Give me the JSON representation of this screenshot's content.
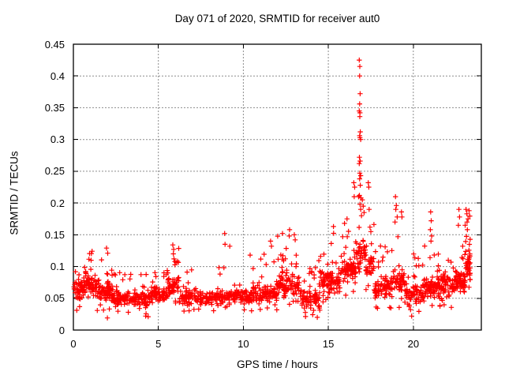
{
  "chart_data": {
    "type": "scatter",
    "title": "Day 071 of 2020, SRMTID for receiver aut0",
    "xlabel": "GPS time / hours",
    "ylabel": "SRMTID / TECUs",
    "xlim": [
      0,
      24
    ],
    "ylim": [
      0,
      0.45
    ],
    "xticks": {
      "values": [
        0,
        5,
        10,
        15,
        20
      ],
      "labels": [
        "0",
        "5",
        "10",
        "15",
        "20"
      ]
    },
    "yticks": {
      "values": [
        0,
        0.05,
        0.1,
        0.15,
        0.2,
        0.25,
        0.3,
        0.35,
        0.4,
        0.45
      ],
      "labels": [
        "0",
        "0.05",
        "0.1",
        "0.15",
        "0.2",
        "0.25",
        "0.3",
        "0.35",
        "0.4",
        "0.45"
      ]
    },
    "grid": true,
    "legend": "none",
    "marker": {
      "shape": "plus",
      "color": "#ff0000",
      "size": 7,
      "stroke_width": 1.2
    },
    "colors": {
      "marker": "#ff0000",
      "grid": "#8c8c8c",
      "axis": "#000000",
      "background": "#ffffff"
    },
    "seed": 20200711,
    "distribution": {
      "p_upper_tail": 0.2,
      "upper_pow": 1.9,
      "p_lower_tail": 0.12,
      "lower_pow": 1.4,
      "core_width_factor": 0.55
    },
    "segments_t0_t1_n_min_mode_max": [
      [
        0.0,
        0.7,
        60,
        0.03,
        0.065,
        0.105
      ],
      [
        0.7,
        1.4,
        60,
        0.032,
        0.068,
        0.122
      ],
      [
        1.4,
        2.2,
        70,
        0.03,
        0.062,
        0.128
      ],
      [
        2.2,
        3.2,
        75,
        0.028,
        0.05,
        0.095
      ],
      [
        3.2,
        4.5,
        85,
        0.022,
        0.048,
        0.09
      ],
      [
        4.5,
        5.5,
        70,
        0.03,
        0.055,
        0.1
      ],
      [
        5.5,
        6.2,
        55,
        0.035,
        0.068,
        0.13
      ],
      [
        6.2,
        7.5,
        80,
        0.028,
        0.052,
        0.095
      ],
      [
        7.5,
        8.8,
        80,
        0.028,
        0.05,
        0.105
      ],
      [
        8.8,
        10.5,
        100,
        0.03,
        0.052,
        0.11
      ],
      [
        10.5,
        12.0,
        100,
        0.03,
        0.057,
        0.125
      ],
      [
        12.0,
        13.3,
        100,
        0.035,
        0.07,
        0.15
      ],
      [
        13.3,
        14.5,
        80,
        0.02,
        0.05,
        0.11
      ],
      [
        14.5,
        15.7,
        90,
        0.04,
        0.077,
        0.16
      ],
      [
        15.7,
        16.6,
        70,
        0.045,
        0.092,
        0.185
      ],
      [
        16.6,
        17.2,
        45,
        0.07,
        0.12,
        0.22
      ],
      [
        17.2,
        17.7,
        35,
        0.06,
        0.1,
        0.185
      ],
      [
        17.7,
        18.7,
        70,
        0.03,
        0.065,
        0.135
      ],
      [
        18.7,
        19.5,
        60,
        0.035,
        0.075,
        0.16
      ],
      [
        19.5,
        20.6,
        75,
        0.025,
        0.058,
        0.13
      ],
      [
        20.6,
        21.4,
        65,
        0.035,
        0.068,
        0.15
      ],
      [
        21.4,
        22.4,
        80,
        0.03,
        0.068,
        0.135
      ],
      [
        22.4,
        23.05,
        70,
        0.04,
        0.08,
        0.155
      ],
      [
        23.05,
        23.35,
        40,
        0.06,
        0.105,
        0.185
      ]
    ],
    "outlier_points": [
      [
        1.1,
        0.124
      ],
      [
        1.95,
        0.129
      ],
      [
        2.02,
        0.121
      ],
      [
        2.0,
        0.019
      ],
      [
        4.25,
        0.022
      ],
      [
        4.4,
        0.021
      ],
      [
        5.85,
        0.134
      ],
      [
        5.9,
        0.127
      ],
      [
        5.88,
        0.12
      ],
      [
        5.92,
        0.112
      ],
      [
        8.9,
        0.152
      ],
      [
        8.92,
        0.135
      ],
      [
        9.2,
        0.132
      ],
      [
        10.4,
        0.118
      ],
      [
        11.6,
        0.14
      ],
      [
        11.65,
        0.132
      ],
      [
        12.3,
        0.152
      ],
      [
        12.72,
        0.158
      ],
      [
        12.7,
        0.148
      ],
      [
        13.0,
        0.15
      ],
      [
        13.05,
        0.142
      ],
      [
        14.35,
        0.02
      ],
      [
        15.3,
        0.163
      ],
      [
        15.95,
        0.168
      ],
      [
        16.1,
        0.175
      ],
      [
        16.5,
        0.232
      ],
      [
        16.55,
        0.225
      ],
      [
        16.52,
        0.21
      ],
      [
        16.82,
        0.425
      ],
      [
        16.85,
        0.415
      ],
      [
        16.84,
        0.4
      ],
      [
        16.87,
        0.372
      ],
      [
        16.84,
        0.356
      ],
      [
        16.82,
        0.345
      ],
      [
        16.86,
        0.342
      ],
      [
        16.85,
        0.336
      ],
      [
        16.88,
        0.312
      ],
      [
        16.84,
        0.306
      ],
      [
        16.86,
        0.303
      ],
      [
        16.9,
        0.3
      ],
      [
        16.83,
        0.272
      ],
      [
        16.87,
        0.266
      ],
      [
        16.82,
        0.262
      ],
      [
        16.85,
        0.247
      ],
      [
        16.9,
        0.243
      ],
      [
        16.84,
        0.238
      ],
      [
        16.88,
        0.228
      ],
      [
        17.35,
        0.232
      ],
      [
        17.38,
        0.225
      ],
      [
        16.83,
        0.212
      ],
      [
        16.92,
        0.208
      ],
      [
        17.0,
        0.205
      ],
      [
        16.86,
        0.198
      ],
      [
        17.05,
        0.195
      ],
      [
        16.9,
        0.19
      ],
      [
        17.4,
        0.19
      ],
      [
        17.1,
        0.185
      ],
      [
        16.95,
        0.18
      ],
      [
        17.45,
        0.162
      ],
      [
        17.5,
        0.155
      ],
      [
        18.95,
        0.21
      ],
      [
        19.0,
        0.196
      ],
      [
        18.97,
        0.19
      ],
      [
        19.05,
        0.178
      ],
      [
        18.92,
        0.17
      ],
      [
        19.3,
        0.186
      ],
      [
        19.33,
        0.178
      ],
      [
        19.9,
        0.022
      ],
      [
        21.02,
        0.186
      ],
      [
        21.05,
        0.172
      ],
      [
        21.0,
        0.158
      ],
      [
        21.08,
        0.148
      ],
      [
        21.04,
        0.14
      ],
      [
        22.68,
        0.19
      ],
      [
        22.72,
        0.178
      ],
      [
        22.65,
        0.165
      ],
      [
        23.1,
        0.19
      ],
      [
        23.15,
        0.183
      ],
      [
        23.22,
        0.175
      ],
      [
        23.28,
        0.188
      ],
      [
        23.05,
        0.165
      ],
      [
        23.18,
        0.158
      ]
    ]
  }
}
